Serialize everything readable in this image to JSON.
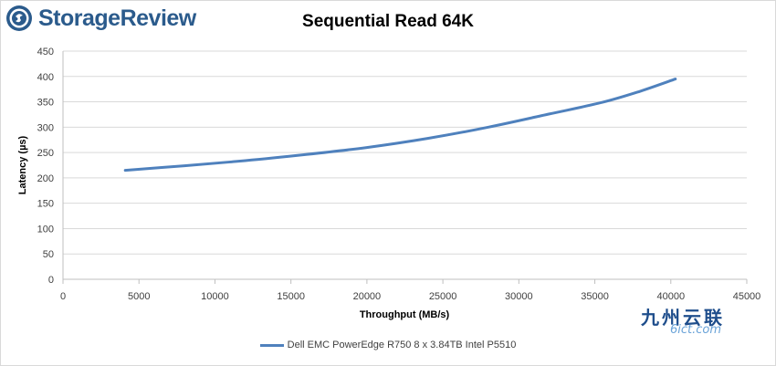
{
  "logo": {
    "text": "StorageReview",
    "icon": "storagereview-logo-icon",
    "color": "#2b5b8c"
  },
  "watermark": {
    "text_cn": "九州云联",
    "text_en": "6ict.com"
  },
  "chart_data": {
    "type": "line",
    "title": "Sequential Read 64K",
    "xlabel": "Throughput (MB/s)",
    "ylabel": "Latency (µs)",
    "xlim": [
      0,
      45000
    ],
    "ylim": [
      0,
      450
    ],
    "x_ticks": [
      0,
      5000,
      10000,
      15000,
      20000,
      25000,
      30000,
      35000,
      40000,
      45000
    ],
    "y_ticks": [
      0,
      50,
      100,
      150,
      200,
      250,
      300,
      350,
      400,
      450
    ],
    "grid": "horizontal",
    "legend_position": "bottom",
    "series": [
      {
        "name": "Dell EMC PowerEdge R750 8 x 3.84TB Intel P5510",
        "color": "#4f81bd",
        "x": [
          4100,
          8000,
          12000,
          16000,
          20000,
          24000,
          28000,
          32000,
          35500,
          38000,
          40300
        ],
        "y": [
          215,
          224,
          234,
          246,
          260,
          278,
          300,
          326,
          349,
          371,
          395
        ]
      }
    ]
  }
}
